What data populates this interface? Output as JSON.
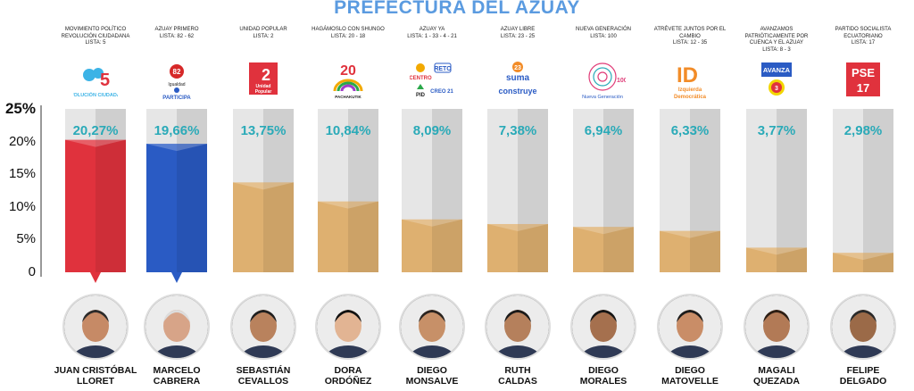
{
  "title": "PREFECTURA DEL AZUAY",
  "parties": [
    {
      "name": "MOVIMIENTO POLÍTICO REVOLUCIÓN CIUDADANA",
      "lista": "LISTA: 5",
      "logo_text": "5",
      "logo_caption": "REVOLUCIÓN CIUDADANA",
      "icon": "rc-logo-icon"
    },
    {
      "name": "AZUAY PRIMERO",
      "lista": "LISTA: 82 - 62",
      "logo_text": "82",
      "logo_caption": "PARTICIPA",
      "icon": "azuay-primero-logo-icon"
    },
    {
      "name": "UNIDAD POPULAR",
      "lista": "LISTA: 2",
      "logo_text": "2",
      "logo_caption": "Unidad Popular",
      "icon": "unidad-popular-logo-icon"
    },
    {
      "name": "HAGÁMOSLO CON SHUNGO",
      "lista": "LISTA: 20 - 18",
      "logo_text": "20",
      "logo_caption": "PACHAKUTIK",
      "icon": "shungo-logo-icon"
    },
    {
      "name": "AZUAY YA",
      "lista": "LISTA: 1 - 33 - 4 - 21",
      "logo_text": "RETO",
      "logo_caption": "CENTRO · PID · CREO 21",
      "icon": "azuay-ya-logo-icon"
    },
    {
      "name": "AZUAY LIBRE",
      "lista": "LISTA: 23 - 25",
      "logo_text": "23 suma",
      "logo_caption": "construye",
      "icon": "azuay-libre-logo-icon"
    },
    {
      "name": "NUEVA GENERACIÓN",
      "lista": "LISTA: 100",
      "logo_text": "100",
      "logo_caption": "Nueva Generación",
      "icon": "nueva-generacion-logo-icon"
    },
    {
      "name": "ATRÉVETE JUNTOS POR EL CAMBIO",
      "lista": "LISTA: 12 - 35",
      "logo_text": "ID",
      "logo_caption": "Izquierda Democrática",
      "icon": "id-logo-icon"
    },
    {
      "name": "AVANZAMOS PATRIÓTICAMENTE POR CUENCA Y EL AZUAY",
      "lista": "LISTA: 8 - 3",
      "logo_text": "AVANZA",
      "logo_caption": "",
      "icon": "avanza-logo-icon"
    },
    {
      "name": "PARTIDO SOCIALISTA ECUATORIANO",
      "lista": "LISTA: 17",
      "logo_text": "PSE",
      "logo_caption": "17",
      "icon": "pse-logo-icon"
    }
  ],
  "candidates": [
    {
      "first": "JUAN CRISTÓBAL",
      "last": "LLORET"
    },
    {
      "first": "MARCELO",
      "last": "CABRERA"
    },
    {
      "first": "SEBASTIÁN",
      "last": "CEVALLOS"
    },
    {
      "first": "DORA",
      "last": "ORDÓÑEZ"
    },
    {
      "first": "DIEGO",
      "last": "MONSALVE"
    },
    {
      "first": "RUTH",
      "last": "CALDAS"
    },
    {
      "first": "DIEGO",
      "last": "MORALES"
    },
    {
      "first": "DIEGO",
      "last": "MATOVELLE"
    },
    {
      "first": "MAGALI",
      "last": "QUEZADA"
    },
    {
      "first": "FELIPE",
      "last": "DELGADO"
    }
  ],
  "chart_data": {
    "type": "bar",
    "title": "PREFECTURA DEL AZUAY",
    "categories": [
      "JUAN CRISTÓBAL LLORET",
      "MARCELO CABRERA",
      "SEBASTIÁN CEVALLOS",
      "DORA ORDÓÑEZ",
      "DIEGO MONSALVE",
      "RUTH CALDAS",
      "DIEGO MORALES",
      "DIEGO MATOVELLE",
      "MAGALI QUEZADA",
      "FELIPE DELGADO"
    ],
    "values": [
      20.27,
      19.66,
      13.75,
      10.84,
      8.09,
      7.38,
      6.94,
      6.33,
      3.77,
      2.98
    ],
    "value_labels": [
      "20,27%",
      "19,66%",
      "13,75%",
      "10,84%",
      "8,09%",
      "7,38%",
      "6,94%",
      "6,33%",
      "3,77%",
      "2,98%"
    ],
    "yticks": [
      "0",
      "5%",
      "10%",
      "15%",
      "20%",
      "25%"
    ],
    "ytick_values": [
      0,
      5,
      10,
      15,
      20,
      25
    ],
    "ylim": [
      0,
      25
    ],
    "grid": false,
    "colors": {
      "first": "#e0323d",
      "second": "#2a5bc4",
      "others": "#deb070",
      "track": "#d8d8d8",
      "value_label": "#2aaab8",
      "title": "#5b9be0"
    }
  }
}
